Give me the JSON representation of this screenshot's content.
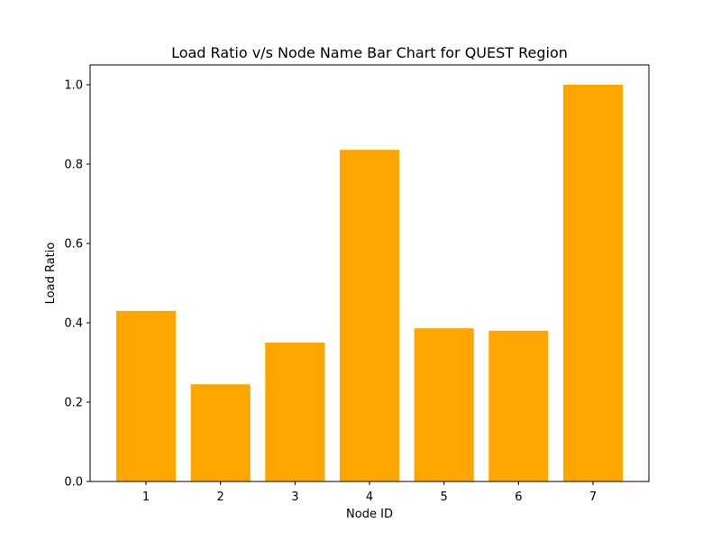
{
  "chart_data": {
    "type": "bar",
    "title": "Load Ratio v/s Node Name Bar Chart for QUEST Region",
    "xlabel": "Node ID",
    "ylabel": "Load Ratio",
    "categories": [
      "1",
      "2",
      "3",
      "4",
      "5",
      "6",
      "7"
    ],
    "values": [
      0.43,
      0.245,
      0.35,
      0.836,
      0.386,
      0.38,
      1.0
    ],
    "ylim": [
      0,
      1.05
    ],
    "yticks": [
      0.0,
      0.2,
      0.4,
      0.6,
      0.8,
      1.0
    ],
    "ytick_labels": [
      "0.0",
      "0.2",
      "0.4",
      "0.6",
      "0.8",
      "1.0"
    ],
    "bar_color": "#ffa500",
    "grid": false,
    "legend": false
  }
}
